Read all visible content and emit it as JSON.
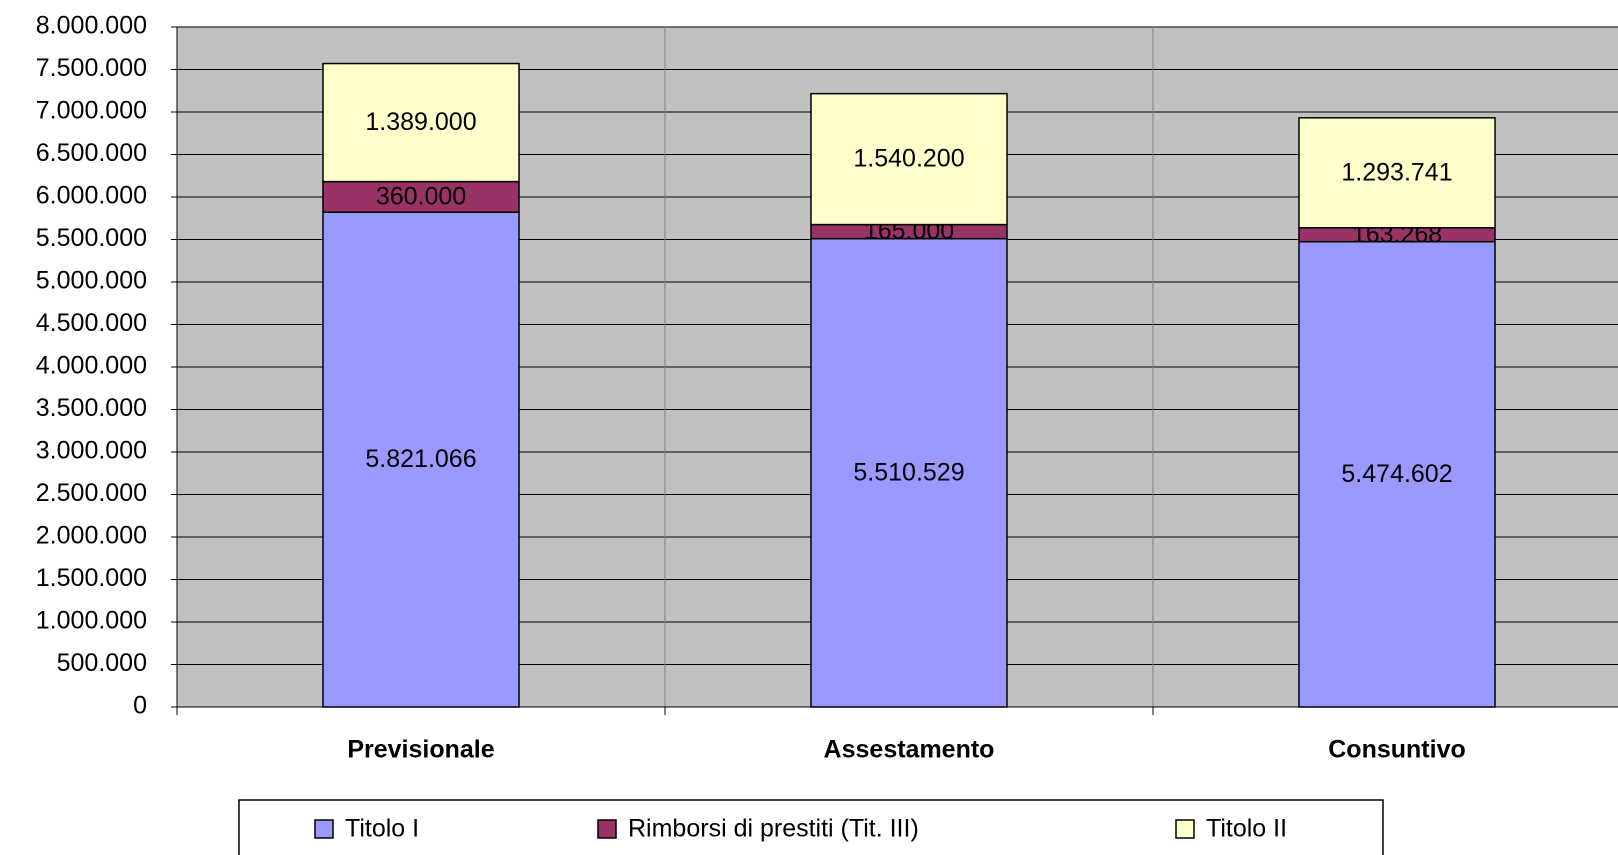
{
  "chart_data": {
    "type": "stacked_bar",
    "categories": [
      "Previsionale",
      "Assestamento",
      "Consuntivo"
    ],
    "series": [
      {
        "name": "Titolo I",
        "color": "#9999ff",
        "values": [
          5821066,
          5510529,
          5474602
        ],
        "value_labels": [
          "5.821.066",
          "5.510.529",
          "5.474.602"
        ]
      },
      {
        "name": "Rimborsi di prestiti (Tit. III)",
        "color": "#993366",
        "values": [
          360000,
          165000,
          163268
        ],
        "value_labels": [
          "360.000",
          "165.000",
          "163.268"
        ]
      },
      {
        "name": "Titolo II",
        "color": "#ffffcc",
        "values": [
          1389000,
          1540200,
          1293741
        ],
        "value_labels": [
          "1.389.000",
          "1.540.200",
          "1.293.741"
        ]
      }
    ],
    "ylim": [
      0,
      8000000
    ],
    "yticks": [
      0,
      {
        "value": 500000,
        "label": "500.000"
      },
      {
        "value": 1000000,
        "label": "1.000.000"
      },
      {
        "value": 1500000,
        "label": "1.500.000"
      },
      {
        "value": 2000000,
        "label": "2.000.000"
      },
      {
        "value": 2500000,
        "label": "2.500.000"
      },
      {
        "value": 3000000,
        "label": "3.000.000"
      },
      {
        "value": 3500000,
        "label": "3.500.000"
      },
      {
        "value": 4000000,
        "label": "4.000.000"
      },
      {
        "value": 4500000,
        "label": "4.500.000"
      },
      {
        "value": 5000000,
        "label": "5.000.000"
      },
      {
        "value": 5500000,
        "label": "5.500.000"
      },
      {
        "value": 6000000,
        "label": "6.000.000"
      },
      {
        "value": 6500000,
        "label": "6.500.000"
      },
      {
        "value": 7000000,
        "label": "7.000.000"
      },
      {
        "value": 7500000,
        "label": "7.500.000"
      },
      {
        "value": 8000000,
        "label": "8.000.000"
      }
    ],
    "grid": true,
    "legend": "bottom"
  }
}
